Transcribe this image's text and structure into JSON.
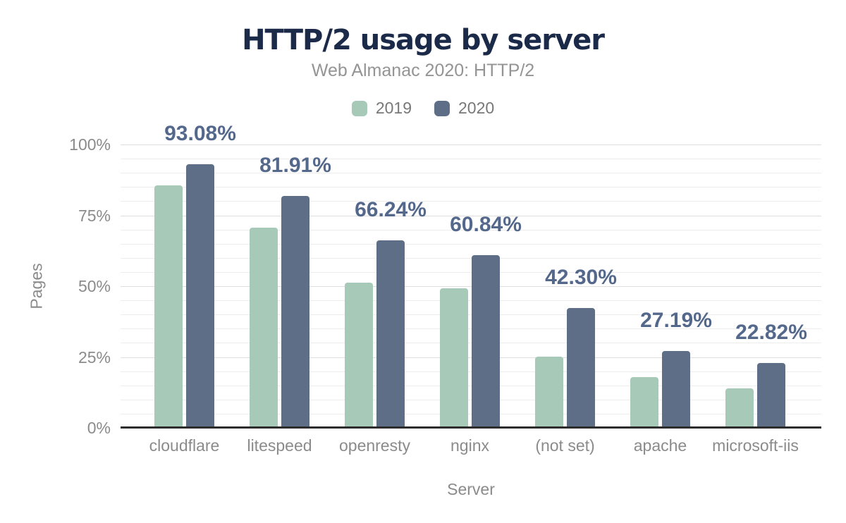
{
  "chart_data": {
    "type": "bar",
    "title": "HTTP/2 usage by server",
    "subtitle": "Web Almanac 2020: HTTP/2",
    "xlabel": "Server",
    "ylabel": "Pages",
    "categories": [
      "cloudflare",
      "litespeed",
      "openresty",
      "nginx",
      "(not set)",
      "apache",
      "microsoft-iis"
    ],
    "series": [
      {
        "name": "2019",
        "color": "#a6c9b8",
        "values": [
          85.5,
          70.6,
          51.2,
          49.2,
          25.1,
          17.9,
          13.9
        ]
      },
      {
        "name": "2020",
        "color": "#5f6e87",
        "values": [
          93.08,
          81.91,
          66.24,
          60.84,
          42.3,
          27.19,
          22.82
        ],
        "labels": [
          "93.08%",
          "81.91%",
          "66.24%",
          "60.84%",
          "42.30%",
          "27.19%",
          "22.82%"
        ]
      }
    ],
    "ylim": [
      0,
      100
    ],
    "yticks": [
      {
        "value": 0,
        "label": "0%"
      },
      {
        "value": 25,
        "label": "25%"
      },
      {
        "value": 50,
        "label": "50%"
      },
      {
        "value": 75,
        "label": "75%"
      },
      {
        "value": 100,
        "label": "100%"
      }
    ],
    "minor_gridline_step": 5,
    "grid": true,
    "legend_position": "top"
  },
  "colors": {
    "title": "#1b2a49",
    "subtitle_gray": "#949494",
    "axis_gray": "#8b8b8b",
    "value_label": "#54688c",
    "series_2019": "#a6c9b8",
    "series_2020": "#5f6e87",
    "gridline_major": "#dedede",
    "gridline_minor": "#ededed",
    "baseline": "#2d2d2d",
    "background": "#ffffff"
  }
}
